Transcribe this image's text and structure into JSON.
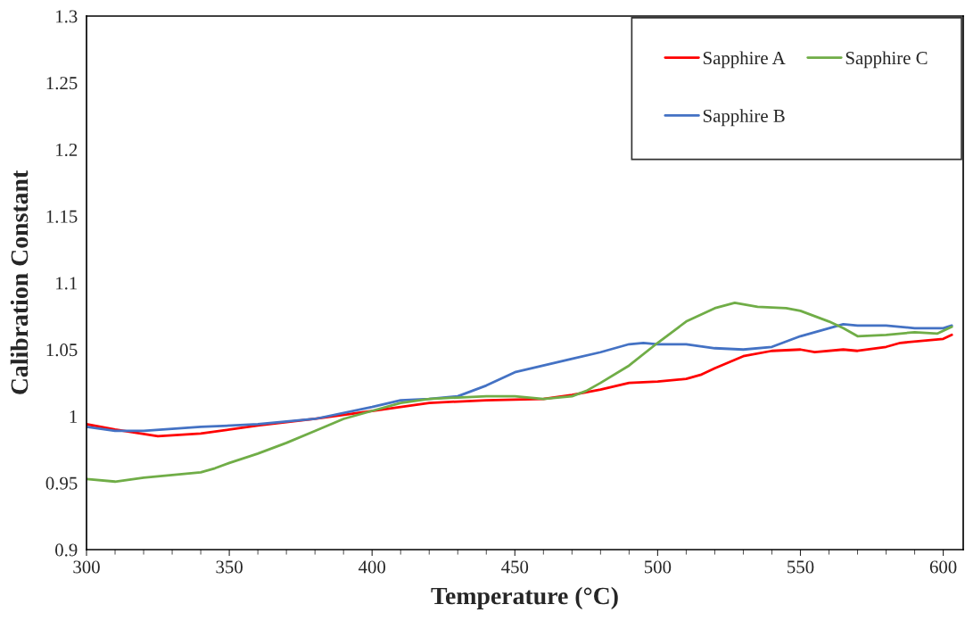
{
  "chart_data": {
    "type": "line",
    "xlabel": "Temperature (°C)",
    "ylabel": "Calibration Constant",
    "xlim": [
      300,
      607
    ],
    "xticks": [
      300,
      350,
      400,
      450,
      500,
      550,
      600
    ],
    "ylim": [
      0.9,
      1.3
    ],
    "yticks": [
      0.9,
      0.95,
      {
        "value": 1.0,
        "label": "1"
      },
      1.05,
      1.1,
      1.15,
      1.2,
      1.25,
      1.3
    ],
    "grid": false,
    "legend": "top right",
    "marker": "none",
    "line_style": "solid",
    "series": [
      {
        "name": "Sapphire A",
        "color": "#ff0000",
        "x": [
          300,
          310,
          325,
          340,
          360,
          380,
          400,
          420,
          440,
          460,
          470,
          480,
          490,
          500,
          510,
          515,
          520,
          530,
          540,
          550,
          555,
          565,
          570,
          580,
          585,
          600,
          603
        ],
        "values": [
          0.994,
          0.99,
          0.985,
          0.987,
          0.993,
          0.998,
          1.004,
          1.01,
          1.012,
          1.013,
          1.016,
          1.02,
          1.025,
          1.026,
          1.028,
          1.031,
          1.036,
          1.045,
          1.049,
          1.05,
          1.048,
          1.05,
          1.049,
          1.052,
          1.055,
          1.058,
          1.061
        ]
      },
      {
        "name": "Sapphire B",
        "color": "#4472c4",
        "x": [
          300,
          310,
          320,
          340,
          360,
          380,
          400,
          410,
          420,
          430,
          440,
          450,
          460,
          470,
          480,
          490,
          495,
          500,
          510,
          520,
          530,
          540,
          550,
          560,
          565,
          570,
          580,
          590,
          600,
          603
        ],
        "values": [
          0.992,
          0.989,
          0.989,
          0.992,
          0.994,
          0.998,
          1.007,
          1.012,
          1.013,
          1.015,
          1.023,
          1.033,
          1.038,
          1.043,
          1.048,
          1.054,
          1.055,
          1.054,
          1.054,
          1.051,
          1.05,
          1.052,
          1.06,
          1.066,
          1.069,
          1.068,
          1.068,
          1.066,
          1.066,
          1.068
        ]
      },
      {
        "name": "Sapphire C",
        "color": "#70ad47",
        "x": [
          300,
          310,
          320,
          330,
          340,
          345,
          350,
          360,
          370,
          380,
          390,
          400,
          410,
          420,
          430,
          440,
          450,
          460,
          470,
          475,
          480,
          490,
          500,
          510,
          520,
          527,
          535,
          545,
          550,
          560,
          565,
          570,
          580,
          590,
          598,
          603
        ],
        "values": [
          0.953,
          0.951,
          0.954,
          0.956,
          0.958,
          0.961,
          0.965,
          0.972,
          0.98,
          0.989,
          0.998,
          1.004,
          1.01,
          1.013,
          1.014,
          1.015,
          1.015,
          1.013,
          1.015,
          1.019,
          1.025,
          1.038,
          1.055,
          1.071,
          1.081,
          1.085,
          1.082,
          1.081,
          1.079,
          1.071,
          1.066,
          1.06,
          1.061,
          1.063,
          1.062,
          1.067
        ]
      }
    ]
  }
}
